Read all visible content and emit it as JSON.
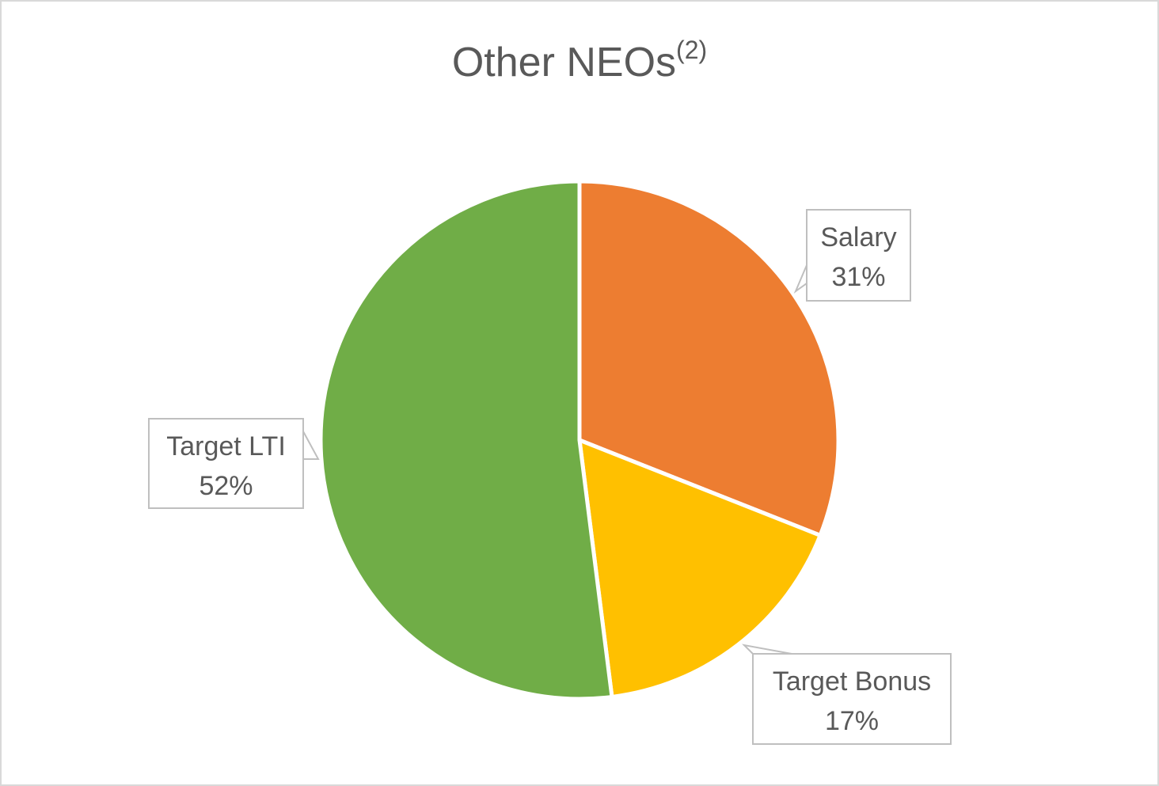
{
  "chart_data": {
    "type": "pie",
    "title": "Other NEOs",
    "title_superscript": "(2)",
    "categories": [
      "Salary",
      "Target Bonus",
      "Target LTI"
    ],
    "values": [
      31,
      17,
      52
    ],
    "value_labels": [
      "31%",
      "17%",
      "52%"
    ],
    "colors": [
      "#ed7d31",
      "#ffc000",
      "#70ad47"
    ]
  }
}
